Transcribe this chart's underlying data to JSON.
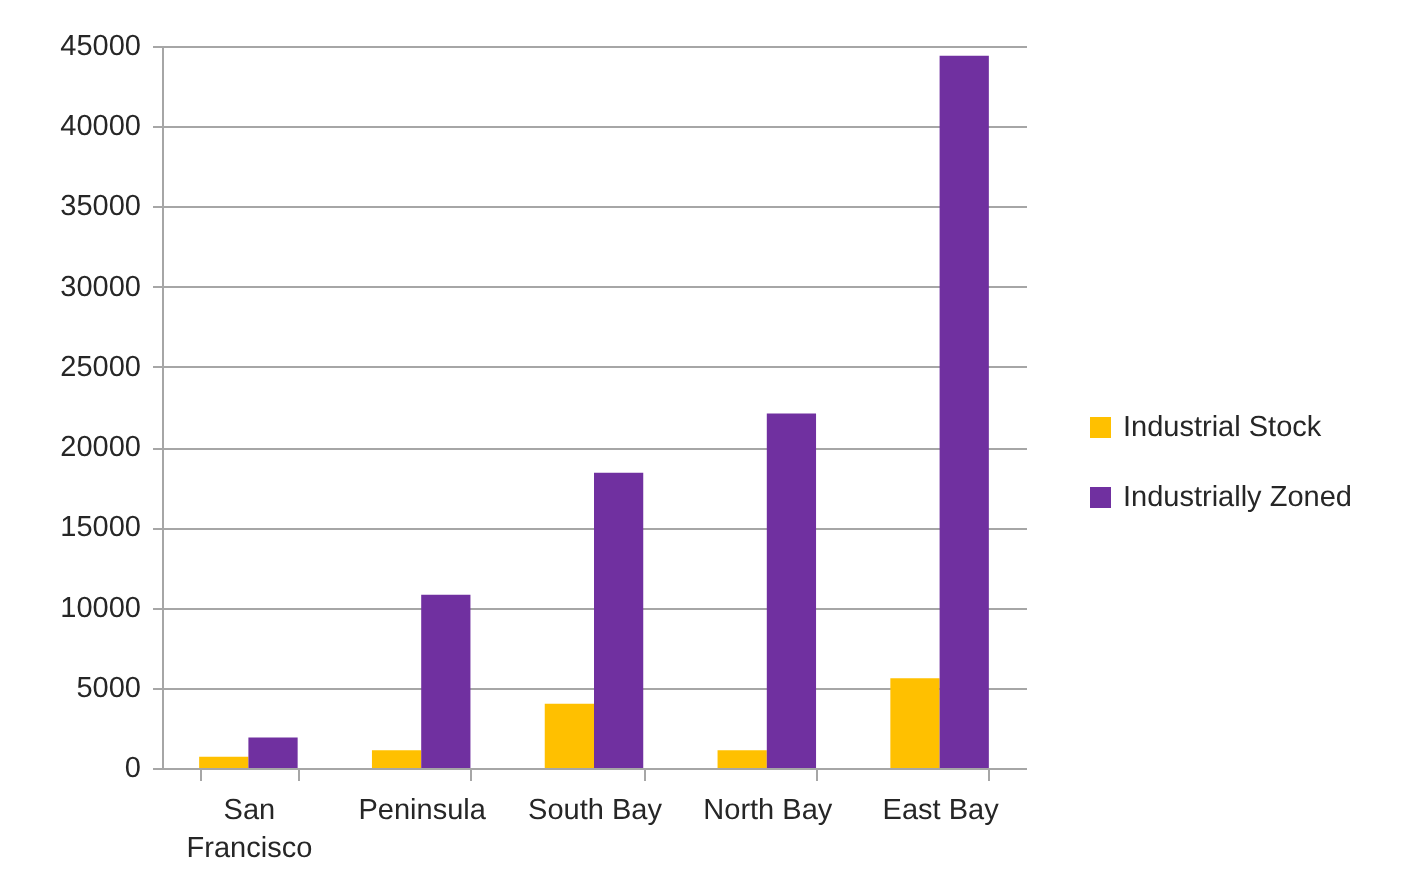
{
  "chart_data": {
    "type": "bar",
    "categories": [
      "San Francisco",
      "Peninsula",
      "South Bay",
      "North Bay",
      "East Bay"
    ],
    "series": [
      {
        "name": "Industrial Stock",
        "color": "#ffc000",
        "values": [
          700,
          1100,
          4000,
          1100,
          5600
        ]
      },
      {
        "name": "Industrially Zoned",
        "color": "#7030a0",
        "values": [
          1900,
          10800,
          18400,
          22100,
          44400
        ]
      }
    ],
    "ylim": [
      0,
      45000
    ],
    "yticks": [
      0,
      5000,
      10000,
      15000,
      20000,
      25000,
      30000,
      35000,
      40000,
      45000
    ],
    "grid": "y",
    "legend": "right"
  }
}
